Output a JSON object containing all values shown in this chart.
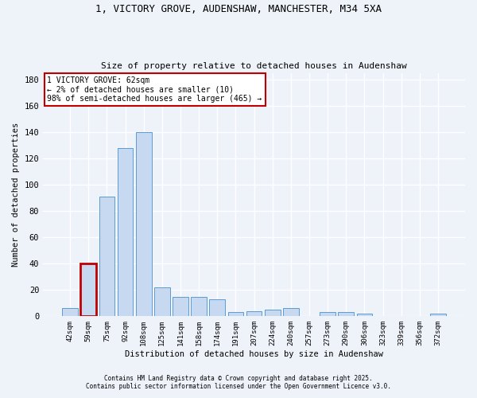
{
  "title1": "1, VICTORY GROVE, AUDENSHAW, MANCHESTER, M34 5XA",
  "title2": "Size of property relative to detached houses in Audenshaw",
  "xlabel": "Distribution of detached houses by size in Audenshaw",
  "ylabel": "Number of detached properties",
  "categories": [
    "42sqm",
    "59sqm",
    "75sqm",
    "92sqm",
    "108sqm",
    "125sqm",
    "141sqm",
    "158sqm",
    "174sqm",
    "191sqm",
    "207sqm",
    "224sqm",
    "240sqm",
    "257sqm",
    "273sqm",
    "290sqm",
    "306sqm",
    "323sqm",
    "339sqm",
    "356sqm",
    "372sqm"
  ],
  "values": [
    6,
    40,
    91,
    128,
    140,
    22,
    15,
    15,
    13,
    3,
    4,
    5,
    6,
    0,
    3,
    3,
    2,
    0,
    0,
    0,
    2
  ],
  "bar_color": "#c7d9f0",
  "bar_edge_color": "#5b9bd5",
  "highlight_index": 1,
  "highlight_edge_color": "#c00000",
  "annotation_line1": "1 VICTORY GROVE: 62sqm",
  "annotation_line2": "← 2% of detached houses are smaller (10)",
  "annotation_line3": "98% of semi-detached houses are larger (465) →",
  "annotation_box_edge_color": "#c00000",
  "annotation_box_face_color": "#ffffff",
  "ylim": [
    0,
    185
  ],
  "yticks": [
    0,
    20,
    40,
    60,
    80,
    100,
    120,
    140,
    160,
    180
  ],
  "footer1": "Contains HM Land Registry data © Crown copyright and database right 2025.",
  "footer2": "Contains public sector information licensed under the Open Government Licence v3.0.",
  "bg_color": "#eef2f9",
  "plot_bg_color": "#eef2f9",
  "grid_color": "#ffffff"
}
